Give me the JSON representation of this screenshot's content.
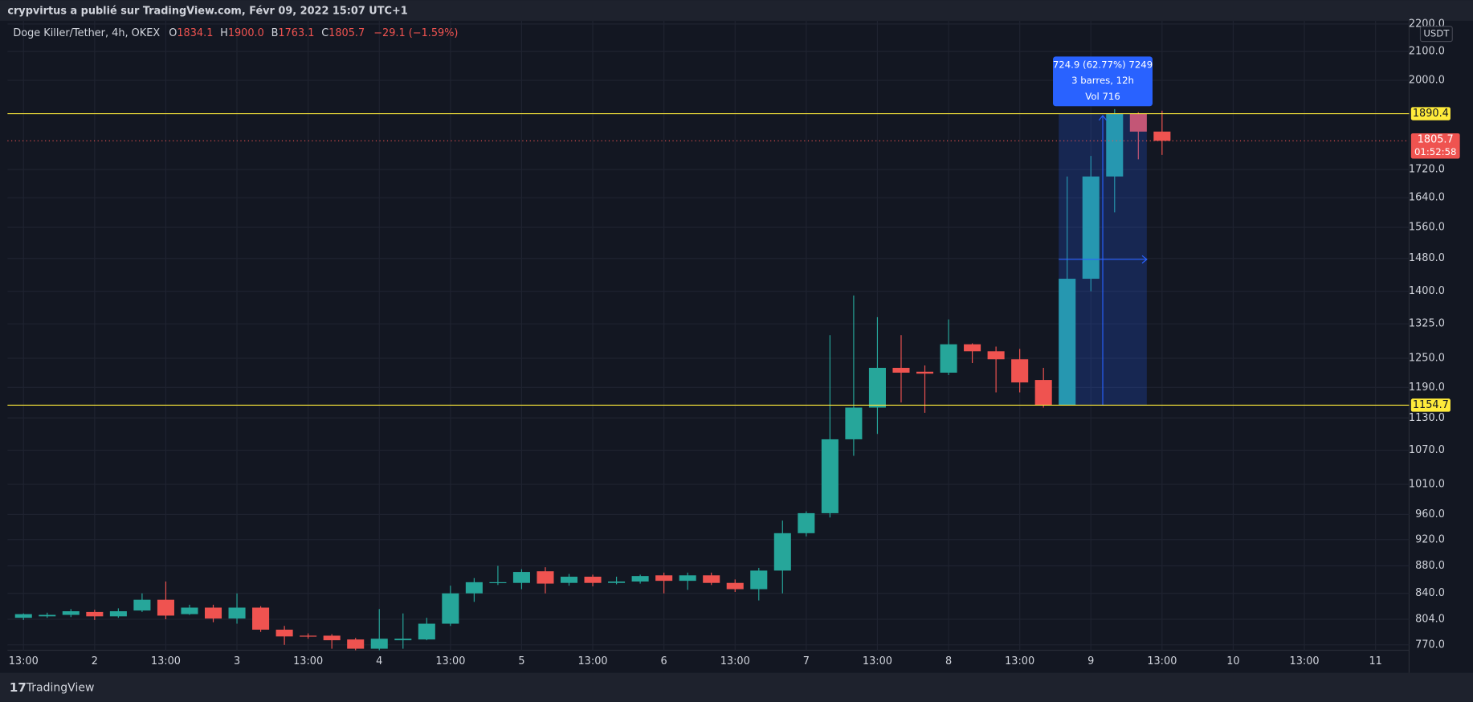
{
  "top_bar": {
    "text": "crypvirtus a publié sur TradingView.com, Févr 09, 2022 15:07 UTC+1"
  },
  "header": {
    "symbol": "Doge Killer/Tether, 4h, OKEX",
    "o_label": "O",
    "o": "1834.1",
    "h_label": "H",
    "h": "1900.0",
    "b_label": "B",
    "b": "1763.1",
    "c_label": "C",
    "c": "1805.7",
    "change": "−29.1 (−1.59%)"
  },
  "footer": {
    "brand": "TradingView"
  },
  "chart_data": {
    "type": "candlestick",
    "currency": "USDT",
    "log_scale": true,
    "grid": true,
    "up_color": "#26a69a",
    "down_color": "#ef5350",
    "categories": [
      "13:00",
      null,
      null,
      "2",
      null,
      null,
      "13:00",
      null,
      null,
      "3",
      null,
      null,
      "13:00",
      null,
      null,
      "4",
      null,
      null,
      "13:00",
      null,
      null,
      "5",
      null,
      null,
      "13:00",
      null,
      null,
      "6",
      null,
      null,
      "13:00",
      null,
      null,
      "7",
      null,
      null,
      "13:00",
      null,
      null,
      "8",
      null,
      null,
      "13:00",
      null,
      null,
      "9",
      null,
      null,
      "13:00",
      null,
      null,
      "10",
      null,
      null,
      "13:00",
      null,
      null,
      "11"
    ],
    "open": [
      806,
      808,
      810,
      814,
      808,
      816,
      831,
      811,
      820,
      805,
      820,
      790,
      782,
      782,
      777,
      765,
      776,
      777,
      798,
      840,
      855,
      855,
      872,
      855,
      864,
      855,
      857,
      866,
      858,
      866,
      855,
      846,
      873,
      930,
      962,
      1090,
      1150,
      1230,
      1222,
      1220,
      1280,
      1265,
      1248,
      1205,
      1155,
      1430,
      1700,
      1890,
      1834.1,
      null,
      null,
      null,
      null,
      null,
      null,
      null,
      null,
      null
    ],
    "high": [
      812,
      813,
      818,
      817,
      819,
      840,
      857,
      824,
      824,
      840,
      822,
      795,
      785,
      784,
      779,
      818,
      812,
      806,
      851,
      862,
      880,
      875,
      878,
      868,
      867,
      864,
      867,
      870,
      870,
      870,
      860,
      877,
      950,
      965,
      1300,
      1390,
      1340,
      1300,
      1235,
      1335,
      1282,
      1275,
      1270,
      1230,
      1700,
      1760,
      1905,
      1895,
      1900.0,
      null,
      null,
      null,
      null,
      null,
      null,
      null,
      null,
      null
    ],
    "low": [
      803,
      806,
      807,
      803,
      806,
      814,
      804,
      810,
      800,
      798,
      787,
      770,
      778,
      765,
      763,
      763,
      765,
      776,
      795,
      828,
      852,
      846,
      840,
      851,
      850,
      853,
      854,
      840,
      845,
      852,
      842,
      830,
      840,
      925,
      955,
      1060,
      1100,
      1160,
      1140,
      1215,
      1240,
      1180,
      1180,
      1150,
      1155,
      1400,
      1600,
      1750,
      1763.1,
      null,
      null,
      null,
      null,
      null,
      null,
      null,
      null,
      null
    ],
    "close": [
      811,
      810,
      815,
      808,
      815,
      831,
      809,
      820,
      805,
      820,
      790,
      781,
      781,
      776,
      765,
      778,
      778,
      798,
      840,
      856,
      856,
      871,
      854,
      864,
      855,
      857,
      865,
      858,
      866,
      855,
      846,
      873,
      930,
      962,
      1090,
      1150,
      1230,
      1220,
      1218,
      1280,
      1265,
      1248,
      1200,
      1155,
      1430,
      1700,
      1890,
      1834,
      1805.7,
      null,
      null,
      null,
      null,
      null,
      null,
      null,
      null,
      null
    ],
    "ylim": [
      763,
      2205
    ],
    "yticks": [
      {
        "value": 770,
        "label": "770.0"
      },
      {
        "value": 804,
        "label": "804.0"
      },
      {
        "value": 840,
        "label": "840.0"
      },
      {
        "value": 880,
        "label": "880.0"
      },
      {
        "value": 920,
        "label": "920.0"
      },
      {
        "value": 960,
        "label": "960.0"
      },
      {
        "value": 1010,
        "label": "1010.0"
      },
      {
        "value": 1070,
        "label": "1070.0"
      },
      {
        "value": 1130,
        "label": "1130.0"
      },
      {
        "value": 1190,
        "label": "1190.0"
      },
      {
        "value": 1250,
        "label": "1250.0"
      },
      {
        "value": 1325,
        "label": "1325.0"
      },
      {
        "value": 1400,
        "label": "1400.0"
      },
      {
        "value": 1480,
        "label": "1480.0"
      },
      {
        "value": 1560,
        "label": "1560.0"
      },
      {
        "value": 1640,
        "label": "1640.0"
      },
      {
        "value": 1720,
        "label": "1720.0"
      },
      {
        "value": 2000,
        "label": "2000.0"
      },
      {
        "value": 2100,
        "label": "2100.0"
      },
      {
        "value": 2200,
        "label": "2200.0"
      }
    ],
    "hlines": [
      {
        "value": 1890.4,
        "color": "#ffeb3b"
      },
      {
        "value": 1154.7,
        "color": "#ffeb3b"
      }
    ],
    "last_price": {
      "value": 1805.7,
      "countdown": "01:52:58",
      "color": "#ef5350"
    },
    "measure": {
      "lines": [
        "724.9 (62.77%) 7249",
        "3 barres, 12h",
        "Vol 716"
      ],
      "color": "#2962ff"
    }
  }
}
